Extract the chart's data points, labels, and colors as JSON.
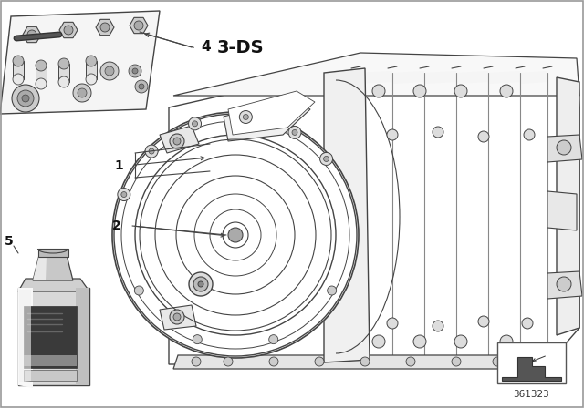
{
  "background_color": "#ffffff",
  "label_1": "1",
  "label_2": "2",
  "label_4": "4",
  "label_5": "5",
  "label_3ds": "3-DS",
  "ref_number": "361323",
  "fig_width": 6.4,
  "fig_height": 4.48,
  "dpi": 100,
  "line_color": "#444444",
  "light_gray": "#cccccc",
  "mid_gray": "#888888",
  "dark_gray": "#555555",
  "very_light": "#f0f0f0",
  "white": "#ffffff"
}
